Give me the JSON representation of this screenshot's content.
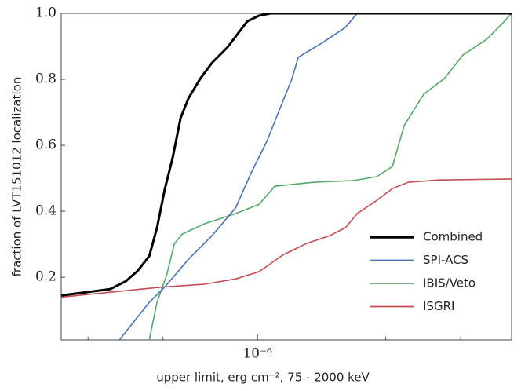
{
  "chart_data": {
    "type": "line",
    "xlabel": "upper limit, erg cm⁻², 75 - 2000 keV",
    "ylabel": "fraction of LVT151012 localization",
    "xscale": "log",
    "xlim": [
      3.46e-07,
      3.95e-06
    ],
    "ylim": [
      0.01,
      1.0
    ],
    "xticks": [
      {
        "value": 1e-06,
        "label": "10⁻⁶"
      }
    ],
    "xminorticks": [
      4e-07,
      6e-07,
      2e-06,
      3e-06
    ],
    "yticks": [
      0.2,
      0.4,
      0.6,
      0.8,
      {
        "value": 1.0,
        "label": "1.0"
      }
    ],
    "legend": "lower right",
    "series": [
      {
        "name": "Combined",
        "color": "#000000",
        "x": [
          3.464e-07,
          4.506e-07,
          4.904e-07,
          5.226e-07,
          5.569e-07,
          5.809e-07,
          6.062e-07,
          6.326e-07,
          6.6e-07,
          6.887e-07,
          7.338e-07,
          7.82e-07,
          8.511e-07,
          9.07e-07,
          9.464e-07,
          1.0085e-06,
          1.075e-06,
          3.951e-06
        ],
        "values": [
          0.145,
          0.164,
          0.188,
          0.219,
          0.264,
          0.35,
          0.469,
          0.564,
          0.683,
          0.743,
          0.802,
          0.85,
          0.898,
          0.945,
          0.976,
          0.993,
          1.0,
          1.0
        ]
      },
      {
        "name": "SPI-ACS",
        "color": "#4c72b0",
        "x": [
          4.74e-07,
          5.117e-07,
          5.569e-07,
          6.062e-07,
          6.887e-07,
          7.82e-07,
          8.88e-07,
          9.667e-07,
          1.052e-06,
          1.145e-06,
          1.205e-06,
          1.247e-06,
          1.416e-06,
          1.608e-06,
          1.714e-06,
          3.951e-06
        ],
        "values": [
          0.01,
          0.064,
          0.124,
          0.171,
          0.255,
          0.326,
          0.41,
          0.517,
          0.612,
          0.731,
          0.802,
          0.867,
          0.91,
          0.957,
          1.0,
          1.0
        ]
      },
      {
        "name": "IBIS/Veto",
        "color": "#55a868",
        "x": [
          5.569e-07,
          5.809e-07,
          6.119e-07,
          6.381e-07,
          6.657e-07,
          7.494e-07,
          8.88e-07,
          1.0085e-06,
          1.098e-06,
          1.357e-06,
          1.678e-06,
          1.905e-06,
          2.074e-06,
          2.21e-06,
          2.457e-06,
          2.744e-06,
          3.038e-06,
          3.45e-06,
          3.755e-06,
          3.951e-06
        ],
        "values": [
          0.01,
          0.124,
          0.207,
          0.302,
          0.331,
          0.362,
          0.393,
          0.421,
          0.476,
          0.488,
          0.493,
          0.505,
          0.536,
          0.66,
          0.755,
          0.802,
          0.874,
          0.921,
          0.969,
          1.0
        ]
      },
      {
        "name": "ISGRI",
        "color": "#c44e52",
        "x": [
          3.464e-07,
          5.809e-07,
          7.494e-07,
          8.88e-07,
          1.0085e-06,
          1.145e-06,
          1.301e-06,
          1.477e-06,
          1.608e-06,
          1.714e-06,
          1.905e-06,
          2.074e-06,
          2.258e-06,
          2.675e-06,
          3.951e-06
        ],
        "values": [
          0.14,
          0.169,
          0.179,
          0.195,
          0.217,
          0.267,
          0.302,
          0.326,
          0.35,
          0.393,
          0.433,
          0.469,
          0.488,
          0.495,
          0.498
        ]
      }
    ]
  }
}
